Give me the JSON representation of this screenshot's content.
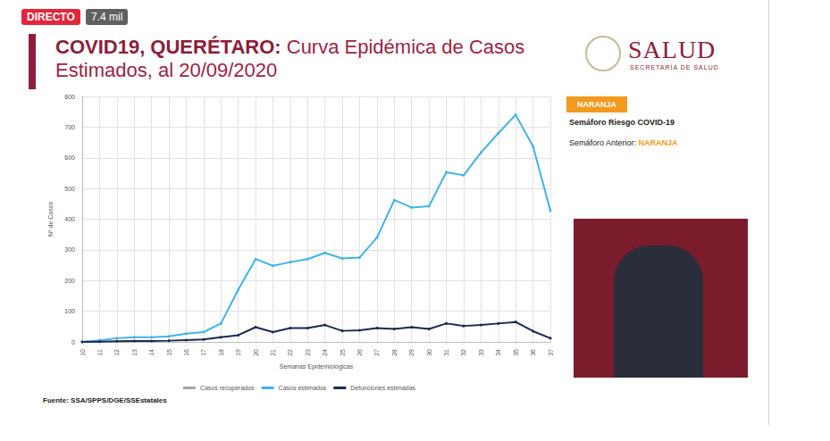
{
  "header": {
    "live": "DIRECTO",
    "views": "7.4 mil"
  },
  "logo": {
    "name": "SALUD",
    "subtitle": "SECRETARÍA DE SALUD"
  },
  "semaforo": {
    "current": "NARANJA",
    "label": "Semáforo Riesgo COVID-19",
    "previous_label": "Semáforo Anterior:",
    "previous": "NARANJA"
  },
  "source": "Fuente: SSA/SPPS/DGE/SSEstatales",
  "chart_data": {
    "type": "line",
    "title": "COVID19, QUERÉTARO: Curva Epidémica de Casos Estimados, al 20/09/2020",
    "x_label": "Semanas Epidemiológicas",
    "y_label": "Nº de Casos",
    "categories": [
      "10",
      "11",
      "12",
      "13",
      "14",
      "15",
      "16",
      "17",
      "18",
      "19",
      "20",
      "21",
      "22",
      "23",
      "24",
      "25",
      "26",
      "27",
      "28",
      "29",
      "30",
      "31",
      "32",
      "33",
      "34",
      "35",
      "36",
      "37"
    ],
    "series": [
      {
        "name": "Casos recuperados",
        "color": "#a6a6a6",
        "marker": "circle",
        "values": [
          null,
          null,
          null,
          null,
          null,
          null,
          null,
          null,
          null,
          null,
          null,
          null,
          null,
          null,
          null,
          null,
          null,
          null,
          null,
          null,
          null,
          null,
          null,
          null,
          null,
          null,
          null,
          null
        ]
      },
      {
        "name": "Casos estimados",
        "color": "#41b3e8",
        "marker": "circle",
        "values": [
          0,
          5,
          12,
          15,
          15,
          18,
          27,
          32,
          60,
          170,
          270,
          248,
          260,
          270,
          290,
          272,
          275,
          340,
          462,
          438,
          442,
          553,
          543,
          617,
          680,
          740,
          637,
          428
        ]
      },
      {
        "name": "Defunciones estimadas",
        "color": "#1c2950",
        "marker": "circle",
        "values": [
          0,
          1,
          2,
          3,
          3,
          4,
          6,
          8,
          15,
          22,
          48,
          32,
          45,
          45,
          55,
          36,
          38,
          45,
          42,
          48,
          42,
          60,
          52,
          55,
          60,
          65,
          35,
          12
        ]
      }
    ],
    "ylim": [
      0,
      800
    ],
    "yticks": [
      0,
      100,
      200,
      300,
      400,
      500,
      600,
      700,
      800
    ],
    "grid": true,
    "legend": "bottom"
  }
}
